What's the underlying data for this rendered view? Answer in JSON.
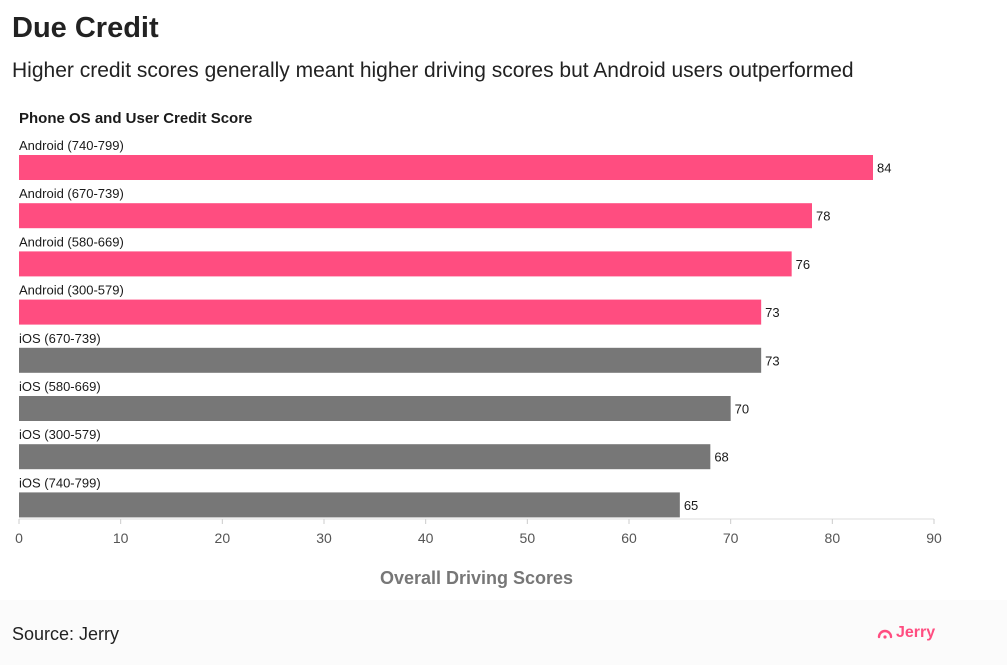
{
  "header": {
    "title": "Due Credit",
    "subtitle": "Higher credit scores generally meant higher driving scores but Android users outperformed"
  },
  "footer": {
    "source": "Source: Jerry",
    "logo_text": "Jerry"
  },
  "colors": {
    "android": "#ff4d80",
    "ios": "#777777",
    "axis_text": "#555555",
    "axis_title": "#777777",
    "logo": "#ff4d80"
  },
  "chart_data": {
    "type": "bar",
    "orientation": "horizontal",
    "category_title": "Phone OS and User Credit Score",
    "xlabel": "Overall Driving Scores",
    "xlim": [
      0,
      90
    ],
    "xticks": [
      0,
      10,
      20,
      30,
      40,
      50,
      60,
      70,
      80,
      90
    ],
    "categories": [
      "Android (740-799)",
      "Android (670-739)",
      "Android (580-669)",
      "Android (300-579)",
      "iOS (670-739)",
      "iOS (580-669)",
      "iOS (300-579)",
      "iOS (740-799)"
    ],
    "values": [
      84,
      78,
      76,
      73,
      73,
      70,
      68,
      65
    ],
    "groups": [
      "Android",
      "Android",
      "Android",
      "Android",
      "iOS",
      "iOS",
      "iOS",
      "iOS"
    ],
    "data_labels": true,
    "legend": "none"
  }
}
